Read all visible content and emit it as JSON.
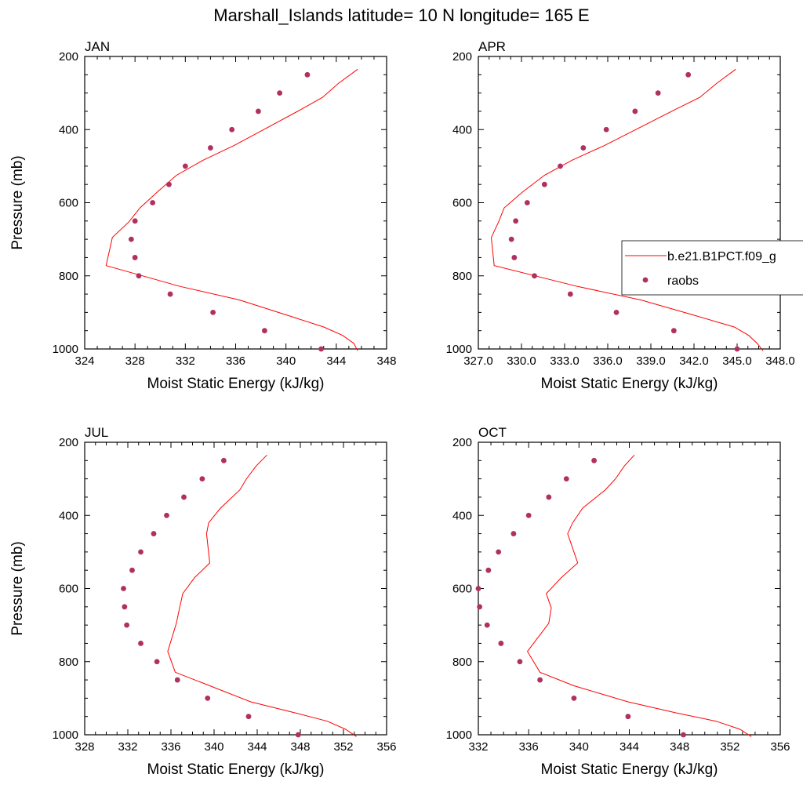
{
  "title": "Marshall_Islands  latitude= 10 N longitude= 165 E",
  "legend": {
    "entries": [
      {
        "label": "b.e21.B1PCT.f09_g",
        "kind": "line",
        "color": "#ff0000"
      },
      {
        "label": "raobs",
        "kind": "marker",
        "color": "#b03060"
      }
    ],
    "placement": "right, on APR panel"
  },
  "chart_data": [
    {
      "type": "line",
      "panel_title": "JAN",
      "xlabel": "Moist Static Energy (kJ/kg)",
      "ylabel": "Pressure (mb)",
      "xlim": [
        324,
        348
      ],
      "xticks": [
        324,
        328,
        332,
        336,
        340,
        344,
        348
      ],
      "xtick_labels": [
        "324",
        "328",
        "332",
        "336",
        "340",
        "344",
        "348"
      ],
      "ylim": [
        1000,
        200
      ],
      "yticks": [
        200,
        400,
        600,
        800,
        1000
      ],
      "ytick_labels": [
        "200",
        "400",
        "600",
        "800",
        "1000"
      ],
      "series": [
        {
          "name": "b.e21.B1PCT.f09_g",
          "kind": "line",
          "color": "#ff0000",
          "x": [
            345.7,
            345.4,
            344.5,
            343.0,
            340.3,
            336.3,
            331.6,
            325.7,
            326.2,
            327.5,
            328.4,
            329.8,
            331.3,
            333.4,
            335.9,
            338.5,
            341.2,
            342.9,
            344.2,
            345.7
          ],
          "y": [
            1005,
            985,
            963,
            940,
            910,
            866,
            829,
            772,
            695,
            653,
            614,
            570,
            525,
            484,
            443,
            395,
            345,
            312,
            273,
            235
          ]
        },
        {
          "name": "raobs",
          "kind": "scatter",
          "color": "#b03060",
          "x": [
            342.8,
            338.3,
            334.2,
            330.8,
            328.3,
            328.0,
            327.7,
            328.0,
            329.4,
            330.7,
            332.0,
            334.0,
            335.7,
            337.8,
            339.5,
            341.7
          ],
          "y": [
            1000,
            950,
            900,
            850,
            800,
            750,
            700,
            650,
            600,
            550,
            500,
            450,
            400,
            350,
            300,
            250
          ]
        }
      ]
    },
    {
      "type": "line",
      "panel_title": "APR",
      "xlabel": "Moist Static Energy (kJ/kg)",
      "ylabel": "",
      "xlim": [
        327,
        348
      ],
      "xticks": [
        327,
        330,
        333,
        336,
        339,
        342,
        345,
        348
      ],
      "xtick_labels": [
        "327.0",
        "330.0",
        "333.0",
        "336.0",
        "339.0",
        "342.0",
        "345.0",
        "348.0"
      ],
      "ylim": [
        1000,
        200
      ],
      "yticks": [
        200,
        400,
        600,
        800,
        1000
      ],
      "ytick_labels": [
        "200",
        "400",
        "600",
        "800",
        "1000"
      ],
      "series": [
        {
          "name": "b.e21.B1PCT.f09_g",
          "kind": "line",
          "color": "#ff0000",
          "x": [
            346.8,
            346.4,
            345.8,
            344.8,
            342.2,
            338.3,
            333.9,
            328.1,
            327.9,
            328.4,
            328.8,
            330.1,
            331.6,
            333.5,
            335.8,
            338.2,
            340.7,
            342.4,
            343.6,
            344.9
          ],
          "y": [
            1005,
            985,
            963,
            940,
            910,
            866,
            829,
            772,
            695,
            653,
            614,
            570,
            525,
            484,
            443,
            395,
            345,
            312,
            273,
            235
          ]
        },
        {
          "name": "raobs",
          "kind": "scatter",
          "color": "#b03060",
          "x": [
            345.0,
            340.6,
            336.6,
            333.4,
            330.9,
            329.5,
            329.3,
            329.6,
            330.4,
            331.6,
            332.7,
            334.3,
            335.9,
            337.9,
            339.5,
            341.6
          ],
          "y": [
            1000,
            950,
            900,
            850,
            800,
            750,
            700,
            650,
            600,
            550,
            500,
            450,
            400,
            350,
            300,
            250
          ]
        }
      ]
    },
    {
      "type": "line",
      "panel_title": "JUL",
      "xlabel": "Moist Static Energy (kJ/kg)",
      "ylabel": "Pressure (mb)",
      "xlim": [
        328,
        356
      ],
      "xticks": [
        328,
        332,
        336,
        340,
        344,
        348,
        352,
        356
      ],
      "xtick_labels": [
        "328",
        "332",
        "336",
        "340",
        "344",
        "348",
        "352",
        "356"
      ],
      "ylim": [
        1000,
        200
      ],
      "yticks": [
        200,
        400,
        600,
        800,
        1000
      ],
      "ytick_labels": [
        "200",
        "400",
        "600",
        "800",
        "1000"
      ],
      "series": [
        {
          "name": "b.e21.B1PCT.f09_g",
          "kind": "line",
          "color": "#ff0000",
          "x": [
            353.2,
            352.2,
            350.5,
            347.5,
            343.4,
            339.6,
            336.4,
            335.7,
            336.5,
            336.8,
            337.1,
            338.2,
            339.6,
            339.3,
            339.5,
            340.6,
            342.4,
            343.0,
            343.9,
            344.9
          ],
          "y": [
            1005,
            985,
            963,
            940,
            910,
            866,
            829,
            772,
            695,
            653,
            614,
            570,
            530,
            450,
            420,
            380,
            330,
            300,
            265,
            235
          ]
        },
        {
          "name": "raobs",
          "kind": "scatter",
          "color": "#b03060",
          "x": [
            347.8,
            343.2,
            339.4,
            336.6,
            334.7,
            333.2,
            331.9,
            331.7,
            331.6,
            332.4,
            333.2,
            334.4,
            335.6,
            337.2,
            338.9,
            340.9
          ],
          "y": [
            1000,
            950,
            900,
            850,
            800,
            750,
            700,
            650,
            600,
            550,
            500,
            450,
            400,
            350,
            300,
            250
          ]
        }
      ]
    },
    {
      "type": "line",
      "panel_title": "OCT",
      "xlabel": "Moist Static Energy (kJ/kg)",
      "ylabel": "",
      "xlim": [
        332,
        356
      ],
      "xticks": [
        332,
        336,
        340,
        344,
        348,
        352,
        356
      ],
      "xtick_labels": [
        "332",
        "336",
        "340",
        "344",
        "348",
        "352",
        "356"
      ],
      "ylim": [
        1000,
        200
      ],
      "yticks": [
        200,
        400,
        600,
        800,
        1000
      ],
      "ytick_labels": [
        "200",
        "400",
        "600",
        "800",
        "1000"
      ],
      "series": [
        {
          "name": "b.e21.B1PCT.f09_g",
          "kind": "line",
          "color": "#ff0000",
          "x": [
            353.7,
            352.8,
            350.9,
            347.7,
            343.9,
            339.6,
            336.9,
            335.9,
            337.6,
            337.8,
            337.4,
            338.6,
            339.9,
            339.1,
            339.5,
            340.3,
            342.1,
            342.9,
            343.6,
            344.4
          ],
          "y": [
            1005,
            985,
            963,
            940,
            910,
            866,
            829,
            772,
            695,
            653,
            614,
            570,
            530,
            450,
            420,
            380,
            330,
            300,
            265,
            235
          ]
        },
        {
          "name": "raobs",
          "kind": "scatter",
          "color": "#b03060",
          "x": [
            348.3,
            343.9,
            339.6,
            336.9,
            335.3,
            333.8,
            332.7,
            332.1,
            332.0,
            332.8,
            333.6,
            334.8,
            336.0,
            337.6,
            339.0,
            341.2
          ],
          "y": [
            1000,
            950,
            900,
            850,
            800,
            750,
            700,
            650,
            600,
            550,
            500,
            450,
            400,
            350,
            300,
            250
          ]
        }
      ]
    }
  ]
}
